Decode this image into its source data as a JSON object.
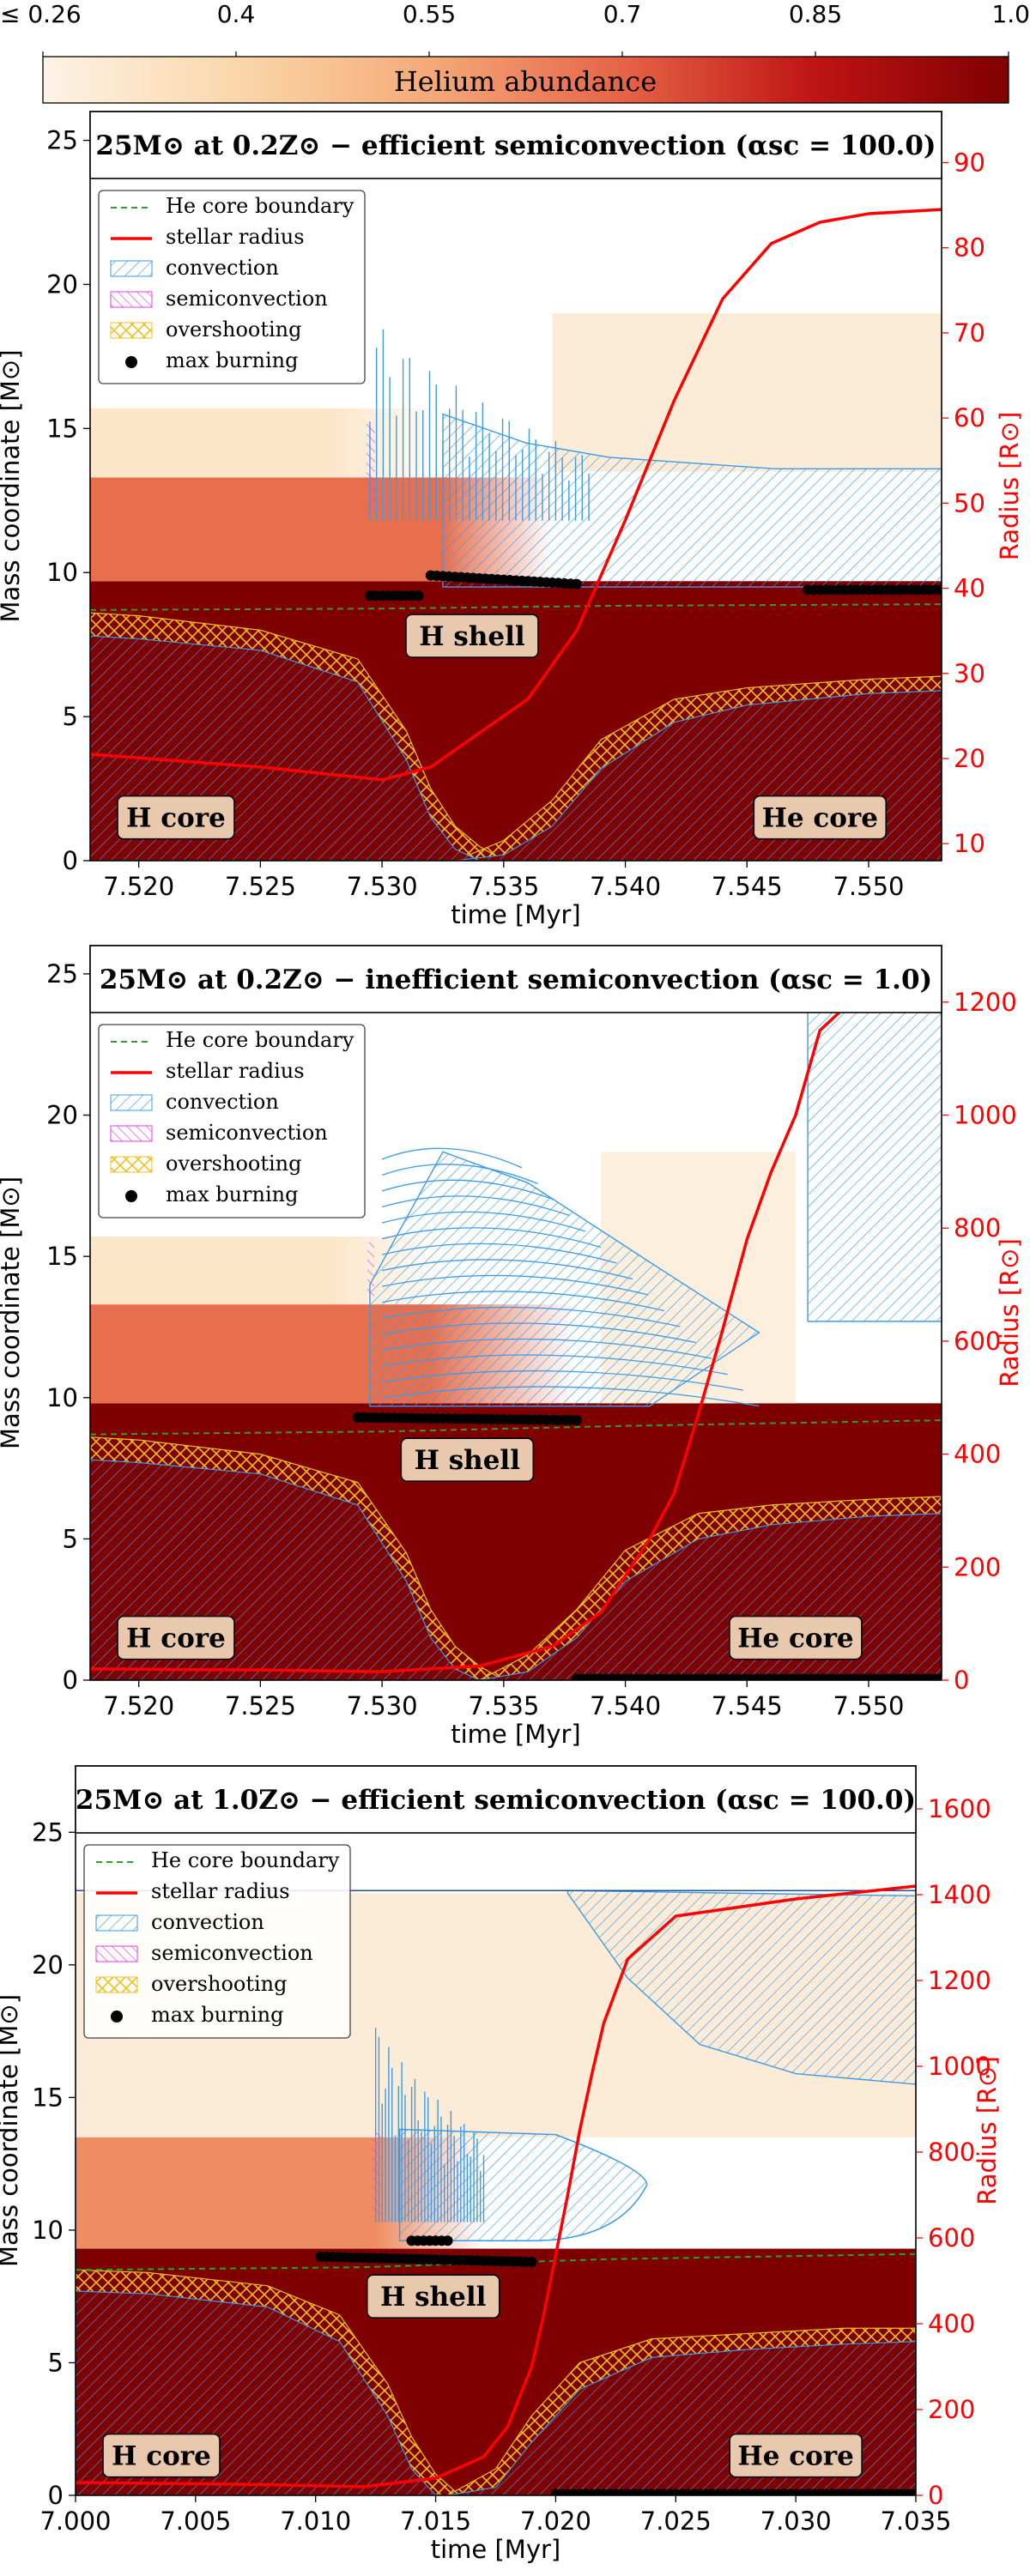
{
  "colorbar": {
    "label": "Helium abundance",
    "tick_labels": [
      "≤ 0.26",
      "0.4",
      "0.55",
      "0.7",
      "0.85",
      "1.0"
    ],
    "range": [
      0.26,
      1.0
    ],
    "colors": {
      "low": "#fdf3e6",
      "mid": "#f39c7a",
      "high": "#7f0000"
    }
  },
  "legend": {
    "entries": [
      "He core boundary",
      "stellar radius",
      "convection",
      "semiconvection",
      "overshooting",
      "max burning"
    ]
  },
  "colors": {
    "he_core_boundary": "#2ca02c",
    "stellar_radius": "#ff0000",
    "convection": "#3b9be8",
    "semiconvection": "#e63ce6",
    "overshooting": "#f0c020",
    "max_burning": "#000000",
    "label_box": "#e9c9ae"
  },
  "region_labels": {
    "h_core": "H core",
    "he_core": "He core",
    "h_shell": "H shell"
  },
  "chart_data": [
    {
      "type": "line",
      "title": "25M⊙ at 0.2Z⊙ − efficient semiconvection (αsc = 100.0)",
      "xlabel": "time [Myr]",
      "ylabel": "Mass coordinate [M⊙]",
      "ylabel_right": "Radius [R⊙]",
      "xlim": [
        7.518,
        7.553
      ],
      "ylim": [
        0,
        26
      ],
      "ylim_right": [
        8,
        96
      ],
      "x_ticks": [
        "7.520",
        "7.525",
        "7.530",
        "7.535",
        "7.540",
        "7.545",
        "7.550"
      ],
      "y_ticks": [
        "0",
        "5",
        "10",
        "15",
        "20",
        "25"
      ],
      "y_right_ticks": [
        "10",
        "20",
        "30",
        "40",
        "50",
        "60",
        "70",
        "80",
        "90"
      ],
      "stellar_mass": 24.5,
      "he_core_boundary": {
        "x": [
          7.518,
          7.53,
          7.54,
          7.553
        ],
        "y": [
          8.7,
          8.75,
          8.85,
          8.9
        ]
      },
      "stellar_radius": {
        "x": [
          7.518,
          7.525,
          7.53,
          7.532,
          7.534,
          7.536,
          7.538,
          7.54,
          7.542,
          7.544,
          7.546,
          7.548,
          7.55,
          7.553
        ],
        "y": [
          20.5,
          19,
          17.5,
          19,
          23,
          27,
          35,
          48,
          62,
          74,
          80.5,
          83,
          84,
          84.5
        ]
      },
      "h_core_convection": {
        "x": [
          7.518,
          7.52,
          7.525,
          7.529,
          7.531,
          7.532,
          7.533,
          7.534
        ],
        "y": [
          7.8,
          7.7,
          7.3,
          6.2,
          3.5,
          1.5,
          0.4,
          0.0
        ]
      },
      "h_core_overshoot": {
        "x": [
          7.518,
          7.52,
          7.525,
          7.529,
          7.531,
          7.532,
          7.533,
          7.534,
          7.535
        ],
        "y": [
          8.6,
          8.5,
          8.0,
          7.0,
          4.5,
          2.5,
          1.2,
          0.5,
          0.0
        ]
      },
      "he_core_convection": {
        "x": [
          7.533,
          7.535,
          7.537,
          7.539,
          7.542,
          7.545,
          7.55,
          7.553
        ],
        "y": [
          0.0,
          0.2,
          1.2,
          3.2,
          4.8,
          5.4,
          5.8,
          5.9
        ]
      },
      "he_core_overshoot": {
        "x": [
          7.533,
          7.535,
          7.537,
          7.539,
          7.542,
          7.545,
          7.55,
          7.553
        ],
        "y": [
          0.0,
          0.7,
          2.1,
          4.2,
          5.6,
          6.0,
          6.3,
          6.4
        ]
      },
      "envelope_convection": {
        "x_start": 7.5325,
        "x_end": 7.553,
        "bottom": 9.5,
        "top": [
          15.5,
          14.5,
          14.0,
          13.8,
          13.6,
          13.6,
          13.6
        ]
      },
      "spikes": {
        "x_start": 7.5295,
        "x_end": 7.5385,
        "base": 12.0,
        "max_top": 19.2,
        "end_top": 14.0
      },
      "max_burning": [
        {
          "x": [
            7.5295,
            7.5315
          ],
          "y": [
            9.2,
            9.2
          ]
        },
        {
          "x": [
            7.532,
            7.538
          ],
          "y": [
            9.9,
            9.6
          ]
        },
        {
          "x": [
            7.5475,
            7.553
          ],
          "y": [
            9.4,
            9.4
          ]
        }
      ],
      "abundance_bands": [
        {
          "y0": 0,
          "y1": 9.7,
          "he": 1.0
        },
        {
          "y0": 9.7,
          "y1": 13.3,
          "he": 0.68,
          "fade_out": [
            7.5325,
            7.537
          ]
        },
        {
          "y0": 13.3,
          "y1": 15.7,
          "he": 0.33,
          "fade_out": [
            7.528,
            7.533
          ]
        },
        {
          "y0": 13.5,
          "y1": 19.0,
          "he": 0.3,
          "x_from": 7.537
        }
      ],
      "he_core_label_x": 7.548
    },
    {
      "type": "line",
      "title": "25M⊙ at 0.2Z⊙ − inefficient semiconvection (αsc = 1.0)",
      "xlabel": "time [Myr]",
      "ylabel": "Mass coordinate [M⊙]",
      "ylabel_right": "Radius [R⊙]",
      "xlim": [
        7.518,
        7.553
      ],
      "ylim": [
        0,
        26
      ],
      "ylim_right": [
        0,
        1300
      ],
      "x_ticks": [
        "7.520",
        "7.525",
        "7.530",
        "7.535",
        "7.540",
        "7.545",
        "7.550"
      ],
      "y_ticks": [
        "0",
        "5",
        "10",
        "15",
        "20",
        "25"
      ],
      "y_right_ticks": [
        "0",
        "200",
        "400",
        "600",
        "800",
        "1000",
        "1200"
      ],
      "stellar_mass": 24.5,
      "he_core_boundary": {
        "x": [
          7.518,
          7.53,
          7.54,
          7.553
        ],
        "y": [
          8.7,
          8.8,
          9.0,
          9.2
        ]
      },
      "stellar_radius": {
        "x": [
          7.518,
          7.525,
          7.53,
          7.534,
          7.537,
          7.539,
          7.541,
          7.542,
          7.543,
          7.544,
          7.545,
          7.546,
          7.547,
          7.548,
          7.55,
          7.553
        ],
        "y": [
          20,
          18,
          15,
          25,
          60,
          120,
          250,
          330,
          470,
          620,
          780,
          900,
          1000,
          1150,
          1230,
          1210
        ]
      },
      "h_core_convection": {
        "x": [
          7.518,
          7.52,
          7.525,
          7.529,
          7.531,
          7.532,
          7.533,
          7.534
        ],
        "y": [
          7.8,
          7.7,
          7.3,
          6.2,
          3.5,
          1.5,
          0.4,
          0.0
        ]
      },
      "h_core_overshoot": {
        "x": [
          7.518,
          7.52,
          7.525,
          7.529,
          7.531,
          7.532,
          7.533,
          7.534,
          7.535
        ],
        "y": [
          8.6,
          8.5,
          8.0,
          7.0,
          4.5,
          2.5,
          1.2,
          0.5,
          0.0
        ]
      },
      "he_core_convection": {
        "x": [
          7.534,
          7.536,
          7.538,
          7.54,
          7.543,
          7.546,
          7.55,
          7.553
        ],
        "y": [
          0.0,
          0.3,
          1.5,
          3.5,
          5.0,
          5.5,
          5.8,
          5.9
        ]
      },
      "he_core_overshoot": {
        "x": [
          7.534,
          7.536,
          7.538,
          7.54,
          7.543,
          7.546,
          7.55,
          7.553
        ],
        "y": [
          0.0,
          0.9,
          2.5,
          4.6,
          5.9,
          6.2,
          6.4,
          6.5
        ]
      },
      "envelope_convection": {
        "x_start": 7.5475,
        "x_end": 7.553,
        "bottom": 12.7,
        "top": [
          24.5,
          24.5,
          24.4
        ]
      },
      "fan": {
        "x_start": 7.5295,
        "x_peak": 7.5325,
        "x_end": 7.5455,
        "bottom": 9.7,
        "top": 18.7,
        "end": 12.3
      },
      "max_burning": [
        {
          "x": [
            7.529,
            7.538
          ],
          "y": [
            9.3,
            9.2
          ]
        },
        {
          "x": [
            7.538,
            7.553
          ],
          "y": [
            0.05,
            0.05
          ]
        }
      ],
      "abundance_bands": [
        {
          "y0": 0,
          "y1": 9.8,
          "he": 1.0
        },
        {
          "y0": 9.8,
          "y1": 13.3,
          "he": 0.68,
          "fade_out": [
            7.532,
            7.538
          ]
        },
        {
          "y0": 13.3,
          "y1": 15.7,
          "he": 0.33,
          "fade_out": [
            7.528,
            7.533
          ]
        },
        {
          "y0": 9.8,
          "y1": 18.7,
          "he": 0.28,
          "x_from": 7.539,
          "x_to": 7.547
        }
      ],
      "he_core_label_x": 7.547
    },
    {
      "type": "line",
      "title": "25M⊙ at 1.0Z⊙ − efficient semiconvection (αsc = 100.0)",
      "xlabel": "time [Myr]",
      "ylabel": "Mass coordinate [M⊙]",
      "ylabel_right": "Radius [R⊙]",
      "xlim": [
        7.0,
        7.035
      ],
      "ylim": [
        0,
        27.5
      ],
      "ylim_right": [
        0,
        1700
      ],
      "x_ticks": [
        "7.000",
        "7.005",
        "7.010",
        "7.015",
        "7.020",
        "7.025",
        "7.030",
        "7.035"
      ],
      "y_ticks": [
        "0",
        "5",
        "10",
        "15",
        "20",
        "25"
      ],
      "y_right_ticks": [
        "0",
        "200",
        "400",
        "600",
        "800",
        "1000",
        "1200",
        "1400",
        "1600"
      ],
      "stellar_mass": 22.8,
      "he_core_boundary": {
        "x": [
          7.0,
          7.012,
          7.022,
          7.035
        ],
        "y": [
          8.5,
          8.6,
          8.9,
          9.1
        ]
      },
      "stellar_radius": {
        "x": [
          7.0,
          7.008,
          7.012,
          7.015,
          7.017,
          7.018,
          7.019,
          7.0195,
          7.02,
          7.0205,
          7.021,
          7.0215,
          7.022,
          7.023,
          7.025,
          7.03,
          7.035
        ],
        "y": [
          30,
          25,
          20,
          40,
          90,
          160,
          300,
          420,
          560,
          700,
          850,
          980,
          1100,
          1250,
          1350,
          1390,
          1420
        ]
      },
      "h_core_convection": {
        "x": [
          7.0,
          7.003,
          7.008,
          7.011,
          7.013,
          7.014,
          7.015
        ],
        "y": [
          7.7,
          7.6,
          7.1,
          5.8,
          3.0,
          1.0,
          0.0
        ]
      },
      "h_core_overshoot": {
        "x": [
          7.0,
          7.003,
          7.008,
          7.011,
          7.013,
          7.014,
          7.015,
          7.016
        ],
        "y": [
          8.5,
          8.4,
          7.9,
          6.8,
          4.2,
          2.2,
          0.8,
          0.0
        ]
      },
      "he_core_convection": {
        "x": [
          7.0155,
          7.0175,
          7.019,
          7.021,
          7.024,
          7.028,
          7.032,
          7.035
        ],
        "y": [
          0.0,
          0.3,
          2.0,
          4.0,
          5.2,
          5.5,
          5.7,
          5.8
        ]
      },
      "he_core_overshoot": {
        "x": [
          7.0155,
          7.0175,
          7.019,
          7.021,
          7.024,
          7.028,
          7.032,
          7.035
        ],
        "y": [
          0.0,
          1.0,
          3.0,
          5.0,
          5.9,
          6.1,
          6.3,
          6.3
        ]
      },
      "envelope_convection": {
        "x_start": 7.0205,
        "x_end": 7.035,
        "bottom": 22.7,
        "top": [
          22.8,
          22.7,
          22.6
        ]
      },
      "envelope_lower": {
        "x": [
          7.0205,
          7.023,
          7.026,
          7.03,
          7.035
        ],
        "y": [
          22.7,
          19.5,
          17.0,
          15.9,
          15.5
        ]
      },
      "loop": {
        "x_start": 7.0135,
        "x_end": 7.0238,
        "bottom": 9.6,
        "top": 13.8
      },
      "spikes": {
        "x_start": 7.0125,
        "x_end": 7.017,
        "base": 10.5,
        "max_top": 18.0,
        "end_top": 13.5
      },
      "max_burning": [
        {
          "x": [
            7.0102,
            7.019
          ],
          "y": [
            9.0,
            8.8
          ]
        },
        {
          "x": [
            7.014,
            7.0155
          ],
          "y": [
            9.6,
            9.6
          ]
        },
        {
          "x": [
            7.02,
            7.035
          ],
          "y": [
            0.05,
            0.05
          ]
        }
      ],
      "abundance_bands": [
        {
          "y0": 0,
          "y1": 9.3,
          "he": 1.0
        },
        {
          "y0": 9.3,
          "y1": 13.5,
          "he": 0.62,
          "fade_out": [
            7.0125,
            7.017
          ]
        },
        {
          "y0": 13.5,
          "y1": 22.7,
          "he": 0.3
        }
      ],
      "he_core_label_x": 7.03
    }
  ]
}
